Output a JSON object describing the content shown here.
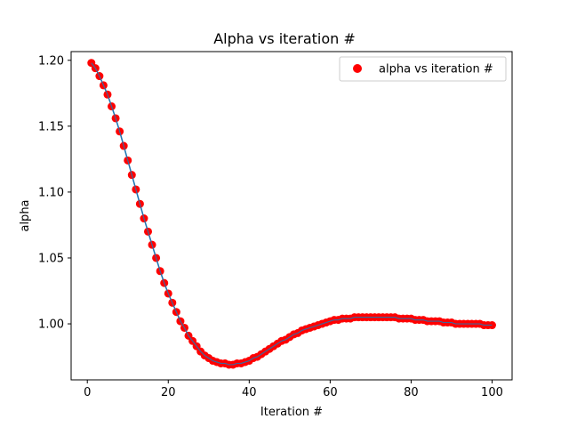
{
  "chart_data": {
    "type": "scatter",
    "title": "Alpha vs iteration #",
    "xlabel": "Iteration #",
    "ylabel": "alpha",
    "xlim": [
      -4,
      104.95
    ],
    "ylim": [
      0.9575,
      1.2066
    ],
    "xticks": [
      0,
      20,
      40,
      60,
      80,
      100
    ],
    "xtick_labels": [
      "0",
      "20",
      "40",
      "60",
      "80",
      "100"
    ],
    "yticks": [
      1.0,
      1.05,
      1.1,
      1.15,
      1.2
    ],
    "ytick_labels": [
      "1.00",
      "1.05",
      "1.10",
      "1.15",
      "1.20"
    ],
    "grid": false,
    "legend": {
      "position": "top-right"
    },
    "series": [
      {
        "name": "alpha vs iteration #",
        "kind": "scatter",
        "color": "#ff0000",
        "x": [
          1,
          2,
          3,
          4,
          5,
          6,
          7,
          8,
          9,
          10,
          11,
          12,
          13,
          14,
          15,
          16,
          17,
          18,
          19,
          20,
          21,
          22,
          23,
          24,
          25,
          26,
          27,
          28,
          29,
          30,
          31,
          32,
          33,
          34,
          35,
          36,
          37,
          38,
          39,
          40,
          41,
          42,
          43,
          44,
          45,
          46,
          47,
          48,
          49,
          50,
          51,
          52,
          53,
          54,
          55,
          56,
          57,
          58,
          59,
          60,
          61,
          62,
          63,
          64,
          65,
          66,
          67,
          68,
          69,
          70,
          71,
          72,
          73,
          74,
          75,
          76,
          77,
          78,
          79,
          80,
          81,
          82,
          83,
          84,
          85,
          86,
          87,
          88,
          89,
          90,
          91,
          92,
          93,
          94,
          95,
          96,
          97,
          98,
          99,
          100
        ],
        "y": [
          1.198,
          1.194,
          1.188,
          1.181,
          1.174,
          1.165,
          1.156,
          1.146,
          1.135,
          1.124,
          1.113,
          1.102,
          1.091,
          1.08,
          1.07,
          1.06,
          1.05,
          1.04,
          1.031,
          1.023,
          1.016,
          1.009,
          1.002,
          0.997,
          0.991,
          0.987,
          0.983,
          0.979,
          0.976,
          0.974,
          0.972,
          0.971,
          0.97,
          0.97,
          0.969,
          0.969,
          0.97,
          0.97,
          0.971,
          0.972,
          0.974,
          0.975,
          0.977,
          0.979,
          0.981,
          0.983,
          0.985,
          0.987,
          0.988,
          0.99,
          0.992,
          0.993,
          0.995,
          0.996,
          0.997,
          0.998,
          0.999,
          1.0,
          1.001,
          1.002,
          1.003,
          1.003,
          1.004,
          1.004,
          1.004,
          1.005,
          1.005,
          1.005,
          1.005,
          1.005,
          1.005,
          1.005,
          1.005,
          1.005,
          1.005,
          1.005,
          1.004,
          1.004,
          1.004,
          1.004,
          1.003,
          1.003,
          1.003,
          1.002,
          1.002,
          1.002,
          1.002,
          1.001,
          1.001,
          1.001,
          1.0,
          1.0,
          1.0,
          1.0,
          1.0,
          1.0,
          1.0,
          0.999,
          0.999,
          0.999
        ]
      },
      {
        "kind": "line",
        "color": "#1f77b4"
      }
    ]
  }
}
